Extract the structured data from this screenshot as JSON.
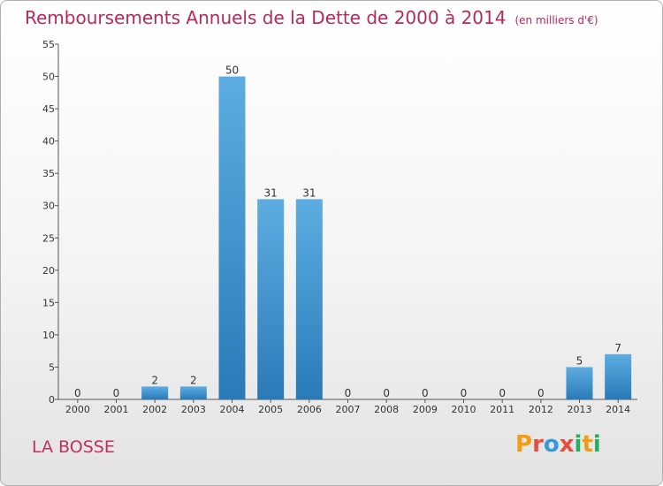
{
  "title": "Remboursements Annuels de la Dette de 2000 à 2014",
  "title_unit": "(en milliers d'€)",
  "place": "LA BOSSE",
  "brand": {
    "text": "Proxiti",
    "letters": [
      {
        "ch": "P",
        "color": "#f39c12"
      },
      {
        "ch": "r",
        "color": "#e74c3c"
      },
      {
        "ch": "o",
        "color": "#3498db"
      },
      {
        "ch": "x",
        "color": "#e74c3c"
      },
      {
        "ch": "i",
        "color": "#27ae60"
      },
      {
        "ch": "t",
        "color": "#f39c12"
      },
      {
        "ch": "i",
        "color": "#27ae60"
      }
    ]
  },
  "colors": {
    "bar_top": "#5dade2",
    "bar_bottom": "#2a7ab8",
    "title": "#b8285a"
  },
  "chart_data": {
    "type": "bar",
    "categories": [
      "2000",
      "2001",
      "2002",
      "2003",
      "2004",
      "2005",
      "2006",
      "2007",
      "2008",
      "2009",
      "2010",
      "2011",
      "2012",
      "2013",
      "2014"
    ],
    "values": [
      0,
      0,
      2,
      2,
      50,
      31,
      31,
      0,
      0,
      0,
      0,
      0,
      0,
      5,
      7
    ],
    "ylim": [
      0,
      55
    ],
    "yticks": [
      0,
      5,
      10,
      15,
      20,
      25,
      30,
      35,
      40,
      45,
      50,
      55
    ],
    "grid": false,
    "legend": "none"
  }
}
